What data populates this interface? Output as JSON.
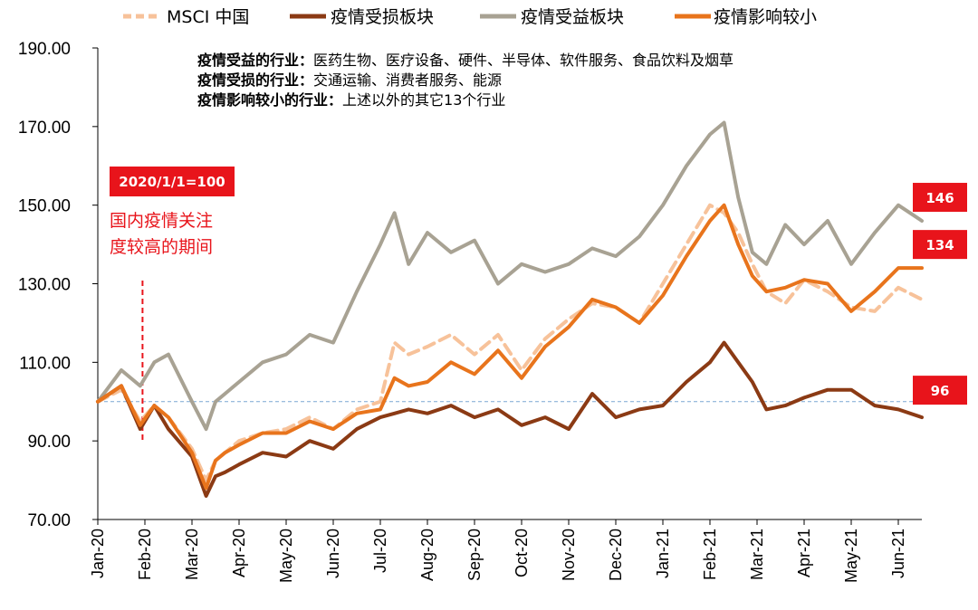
{
  "chart_data": {
    "type": "line",
    "title": "",
    "xlabel": "",
    "ylabel": "",
    "ylim": [
      70,
      190
    ],
    "yticks": [
      "70.00",
      "90.00",
      "110.00",
      "130.00",
      "150.00",
      "170.00",
      "190.00"
    ],
    "x_ticks": [
      "Jan-20",
      "Feb-20",
      "Mar-20",
      "Apr-20",
      "May-20",
      "Jun-20",
      "Jul-20",
      "Aug-20",
      "Sep-20",
      "Oct-20",
      "Nov-20",
      "Dec-20",
      "Jan-21",
      "Feb-21",
      "Mar-21",
      "Apr-21",
      "May-21",
      "Jun-21"
    ],
    "x_points": [
      0,
      0.5,
      0.9,
      1.2,
      1.5,
      2.0,
      2.3,
      2.5,
      2.7,
      3.0,
      3.5,
      4.0,
      4.5,
      5.0,
      5.5,
      6.0,
      6.3,
      6.6,
      7.0,
      7.5,
      8.0,
      8.5,
      9.0,
      9.5,
      10.0,
      10.5,
      11.0,
      11.5,
      12.0,
      12.5,
      13.0,
      13.3,
      13.6,
      13.9,
      14.2,
      14.6,
      15.0,
      15.5,
      16.0,
      16.5,
      17.0,
      17.5
    ],
    "baseline": 100,
    "series": [
      {
        "name": "MSCI 中国",
        "color": "#f7c29a",
        "dash": true,
        "values": [
          100,
          103,
          95,
          99,
          96,
          88,
          80,
          85,
          87,
          90,
          92,
          93,
          96,
          93,
          98,
          100,
          115,
          112,
          114,
          117,
          112,
          117,
          108,
          116,
          121,
          125,
          124,
          120,
          130,
          140,
          150,
          148,
          143,
          135,
          128,
          125,
          131,
          128,
          124,
          123,
          129,
          126
        ]
      },
      {
        "name": "疫情受损板块",
        "color": "#8b3a14",
        "dash": false,
        "values": [
          100,
          104,
          93,
          99,
          93,
          86,
          76,
          81,
          82,
          84,
          87,
          86,
          90,
          88,
          93,
          96,
          97,
          98,
          97,
          99,
          96,
          98,
          94,
          96,
          93,
          102,
          96,
          98,
          99,
          105,
          110,
          115,
          110,
          105,
          98,
          99,
          101,
          103,
          103,
          99,
          98,
          96
        ]
      },
      {
        "name": "疫情受益板块",
        "color": "#a8a293",
        "dash": false,
        "values": [
          100,
          108,
          104,
          110,
          112,
          100,
          93,
          100,
          102,
          105,
          110,
          112,
          117,
          115,
          128,
          140,
          148,
          135,
          143,
          138,
          141,
          130,
          135,
          133,
          135,
          139,
          137,
          142,
          150,
          160,
          168,
          171,
          152,
          138,
          135,
          145,
          140,
          146,
          135,
          143,
          150,
          146
        ]
      },
      {
        "name": "疫情影响较小",
        "color": "#e8741c",
        "dash": false,
        "values": [
          100,
          104,
          94,
          99,
          96,
          87,
          78,
          85,
          87,
          89,
          92,
          92,
          95,
          93,
          97,
          98,
          106,
          104,
          105,
          110,
          107,
          113,
          106,
          114,
          119,
          126,
          124,
          120,
          127,
          137,
          146,
          150,
          140,
          132,
          128,
          129,
          131,
          130,
          123,
          128,
          134,
          134
        ]
      }
    ],
    "end_labels": [
      {
        "series": "疫情受益板块",
        "text": "146"
      },
      {
        "series": "疫情影响较小",
        "text": "134"
      },
      {
        "series": "疫情受损板块",
        "text": "96"
      }
    ],
    "annotations": {
      "base_box": "2020/1/1=100",
      "highlight_line1": "国内疫情关注",
      "highlight_line2": "度较高的期间",
      "highlight_x": 0.95,
      "notes": [
        {
          "label": "疫情受益的行业：",
          "text": "医药生物、医疗设备、硬件、半导体、软件服务、食品饮料及烟草"
        },
        {
          "label": "疫情受损的行业：",
          "text": "交通运输、消费者服务、能源"
        },
        {
          "label": "疫情影响较小的行业：",
          "text": "上述以外的其它13个行业"
        }
      ]
    },
    "legend_position": "top"
  },
  "colors": {
    "accent_red": "#e8141b",
    "baseline_blue": "#7aa7d3"
  }
}
